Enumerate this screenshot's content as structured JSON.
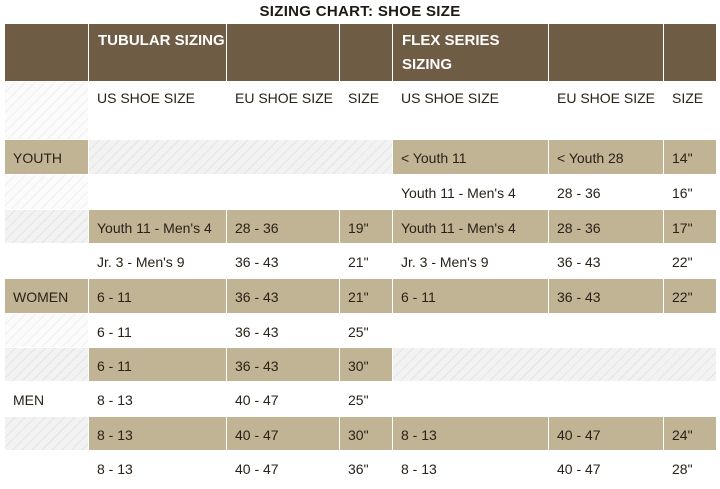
{
  "title": "SIZING CHART: SHOE SIZE",
  "groups": {
    "tubular": "TUBULAR SIZING",
    "flex": "FLEX SERIES SIZING"
  },
  "columns": {
    "us": "US SHOE SIZE",
    "eu": "EU SHOE SIZE",
    "size": "SIZE"
  },
  "rows": [
    {
      "label": "YOUTH",
      "t_us": "",
      "t_eu": "",
      "t_size": "",
      "f_us": "< Youth 11",
      "f_eu": "< Youth 28",
      "f_size": "14\""
    },
    {
      "label": "",
      "t_us": "",
      "t_eu": "",
      "t_size": "",
      "f_us": "Youth 11 - Men's 4",
      "f_eu": "28 - 36",
      "f_size": "16\""
    },
    {
      "label": "",
      "t_us": "Youth 11 - Men's 4",
      "t_eu": "28 - 36",
      "t_size": "19\"",
      "f_us": "Youth 11 - Men's 4",
      "f_eu": "28 - 36",
      "f_size": "17\""
    },
    {
      "label": "",
      "t_us": "Jr. 3 - Men's 9",
      "t_eu": "36 - 43",
      "t_size": "21\"",
      "f_us": "Jr. 3 - Men's 9",
      "f_eu": "36 - 43",
      "f_size": "22\""
    },
    {
      "label": "WOMEN",
      "t_us": "6 - 11",
      "t_eu": "36 - 43",
      "t_size": "21\"",
      "f_us": "6 - 11",
      "f_eu": "36 - 43",
      "f_size": "22\""
    },
    {
      "label": "",
      "t_us": "6 - 11",
      "t_eu": "36 - 43",
      "t_size": "25\"",
      "f_us": "",
      "f_eu": "",
      "f_size": ""
    },
    {
      "label": "",
      "t_us": "6 - 11",
      "t_eu": "36 - 43",
      "t_size": "30\"",
      "f_us": "",
      "f_eu": "",
      "f_size": ""
    },
    {
      "label": "MEN",
      "t_us": "8 - 13",
      "t_eu": "40 - 47",
      "t_size": "25\"",
      "f_us": "",
      "f_eu": "",
      "f_size": ""
    },
    {
      "label": "",
      "t_us": "8 - 13",
      "t_eu": "40 - 47",
      "t_size": "30\"",
      "f_us": "8 - 13",
      "f_eu": "40 - 47",
      "f_size": "24\""
    },
    {
      "label": "",
      "t_us": "8 - 13",
      "t_eu": "40 - 47",
      "t_size": "36\"",
      "f_us": "8 - 13",
      "f_eu": "40 - 47",
      "f_size": "28\""
    }
  ],
  "colors": {
    "header": "#6e5c45",
    "row_highlight": "#c1b494",
    "hatch": "#f2f2f2"
  }
}
